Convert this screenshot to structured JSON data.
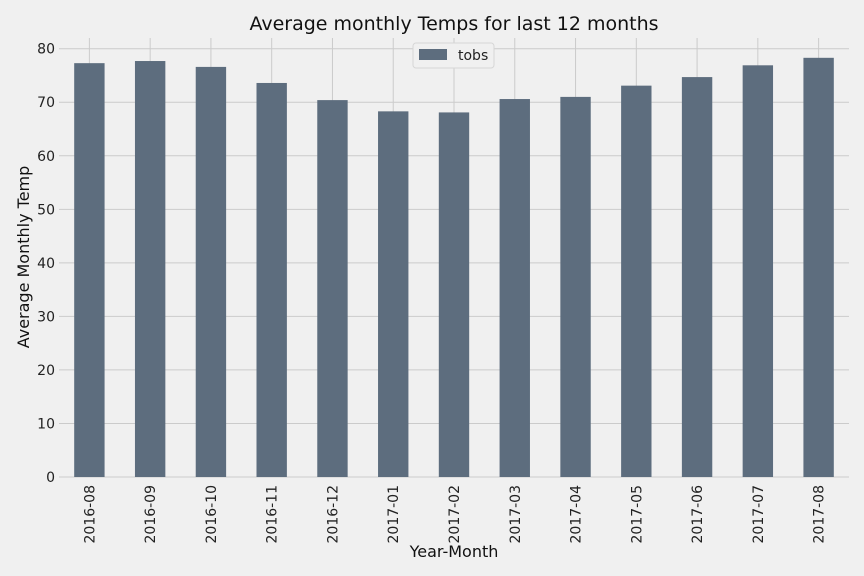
{
  "chart_data": {
    "type": "bar",
    "title": "Average monthly Temps for last 12 months",
    "xlabel": "Year-Month",
    "ylabel": "Average Monthly Temp",
    "categories": [
      "2016-08",
      "2016-09",
      "2016-10",
      "2016-11",
      "2016-12",
      "2017-01",
      "2017-02",
      "2017-03",
      "2017-04",
      "2017-05",
      "2017-06",
      "2017-07",
      "2017-08"
    ],
    "series": [
      {
        "name": "tobs",
        "values": [
          77.3,
          77.7,
          76.6,
          73.6,
          70.4,
          68.3,
          68.1,
          70.6,
          71.0,
          73.1,
          74.7,
          76.9,
          78.3
        ]
      }
    ],
    "ylim": [
      0,
      82
    ],
    "yticks": [
      0,
      10,
      20,
      30,
      40,
      50,
      60,
      70,
      80
    ],
    "grid": true,
    "legend_position": "top-center",
    "bar_color": "#5d6d7e",
    "background_color": "#f0f0f0",
    "grid_color": "#cbcbcb"
  }
}
